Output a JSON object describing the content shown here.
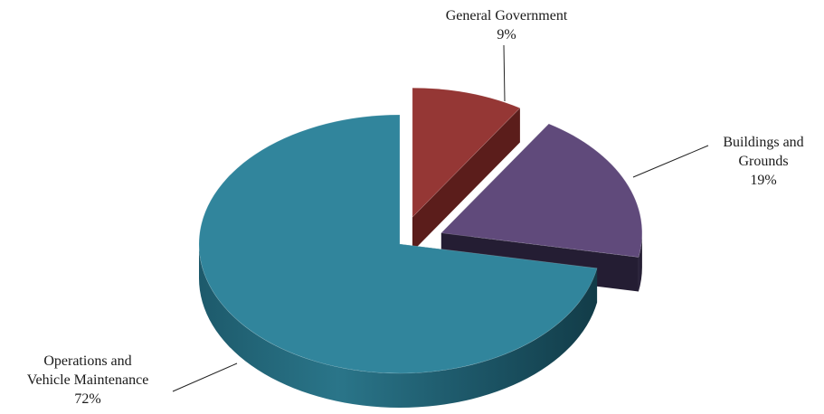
{
  "chart_data": {
    "type": "pie",
    "style": "3d-exploded",
    "slices": [
      {
        "label_lines": [
          "General Government"
        ],
        "percent_label": "9%",
        "value": 9,
        "color": "#953735"
      },
      {
        "label_lines": [
          "Buildings and",
          "Grounds"
        ],
        "percent_label": "19%",
        "value": 19,
        "color": "#604a7b"
      },
      {
        "label_lines": [
          "Operations and",
          "Vehicle Maintenance"
        ],
        "percent_label": "72%",
        "value": 72,
        "color": "#31859c"
      }
    ],
    "legend": "none",
    "data_labels": "outside with leader lines"
  }
}
